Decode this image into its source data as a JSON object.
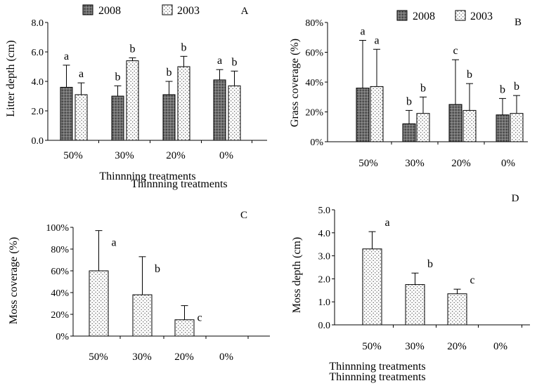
{
  "colors": {
    "bar2008": "#707070",
    "bar2003": "#ffffff",
    "dot": "#666666",
    "axis": "#000000"
  },
  "chart_data": [
    {
      "type": "bar",
      "panel": "A",
      "ylabel": "Litter depth (cm)",
      "xlabel": "Thinnning treatments",
      "categories": [
        "50%",
        "30%",
        "20%",
        "0%"
      ],
      "ylim": [
        0,
        8
      ],
      "yticks": [
        "0.0",
        "2.0",
        "4.0",
        "6.0",
        "8.0"
      ],
      "legend": "top",
      "series": [
        {
          "name": "2008",
          "values": [
            3.6,
            3.0,
            3.1,
            4.1
          ],
          "errors": [
            1.5,
            0.7,
            0.9,
            0.7
          ],
          "letters": [
            "a",
            "b",
            "b",
            "a"
          ]
        },
        {
          "name": "2003",
          "values": [
            3.1,
            5.4,
            5.0,
            3.7
          ],
          "errors": [
            0.8,
            0.2,
            0.7,
            1.0
          ],
          "letters": [
            "a",
            "b",
            "b",
            "b"
          ]
        }
      ]
    },
    {
      "type": "bar",
      "panel": "B",
      "ylabel": "Grass coverage (%)",
      "xlabel": "Thinnning treatments",
      "categories": [
        "50%",
        "30%",
        "20%",
        "0%"
      ],
      "ylim": [
        0,
        80
      ],
      "yticks": [
        "0%",
        "20%",
        "40%",
        "60%",
        "80%"
      ],
      "legend": "top",
      "series": [
        {
          "name": "2008",
          "values": [
            36,
            12,
            25,
            18
          ],
          "errors": [
            32,
            9,
            30,
            11
          ],
          "letters": [
            "a",
            "b",
            "c",
            "b"
          ]
        },
        {
          "name": "2003",
          "values": [
            37,
            19,
            21,
            19
          ],
          "errors": [
            25,
            11,
            18,
            12
          ],
          "letters": [
            "a",
            "b",
            "b",
            "b"
          ]
        }
      ]
    },
    {
      "type": "bar",
      "panel": "C",
      "ylabel": "Moss coverage (%)",
      "xlabel": "Thinnning treatments",
      "categories": [
        "50%",
        "30%",
        "20%",
        "0%"
      ],
      "ylim": [
        0,
        100
      ],
      "yticks": [
        "0%",
        "20%",
        "40%",
        "60%",
        "80%",
        "100%"
      ],
      "series": [
        {
          "name": "",
          "values": [
            60,
            38,
            15,
            0
          ],
          "errors": [
            37,
            35,
            13,
            0
          ],
          "letters": [
            "a",
            "b",
            "c",
            ""
          ]
        }
      ]
    },
    {
      "type": "bar",
      "panel": "D",
      "ylabel": "Moss depth (cm)",
      "xlabel": "Thinnning treatments",
      "categories": [
        "50%",
        "30%",
        "20%",
        "0%"
      ],
      "ylim": [
        0,
        5
      ],
      "yticks": [
        "0.0",
        "1.0",
        "2.0",
        "3.0",
        "4.0",
        "5.0"
      ],
      "series": [
        {
          "name": "",
          "values": [
            3.3,
            1.75,
            1.35,
            0
          ],
          "errors": [
            0.75,
            0.5,
            0.2,
            0
          ],
          "letters": [
            "a",
            "b",
            "c",
            ""
          ]
        }
      ]
    }
  ]
}
